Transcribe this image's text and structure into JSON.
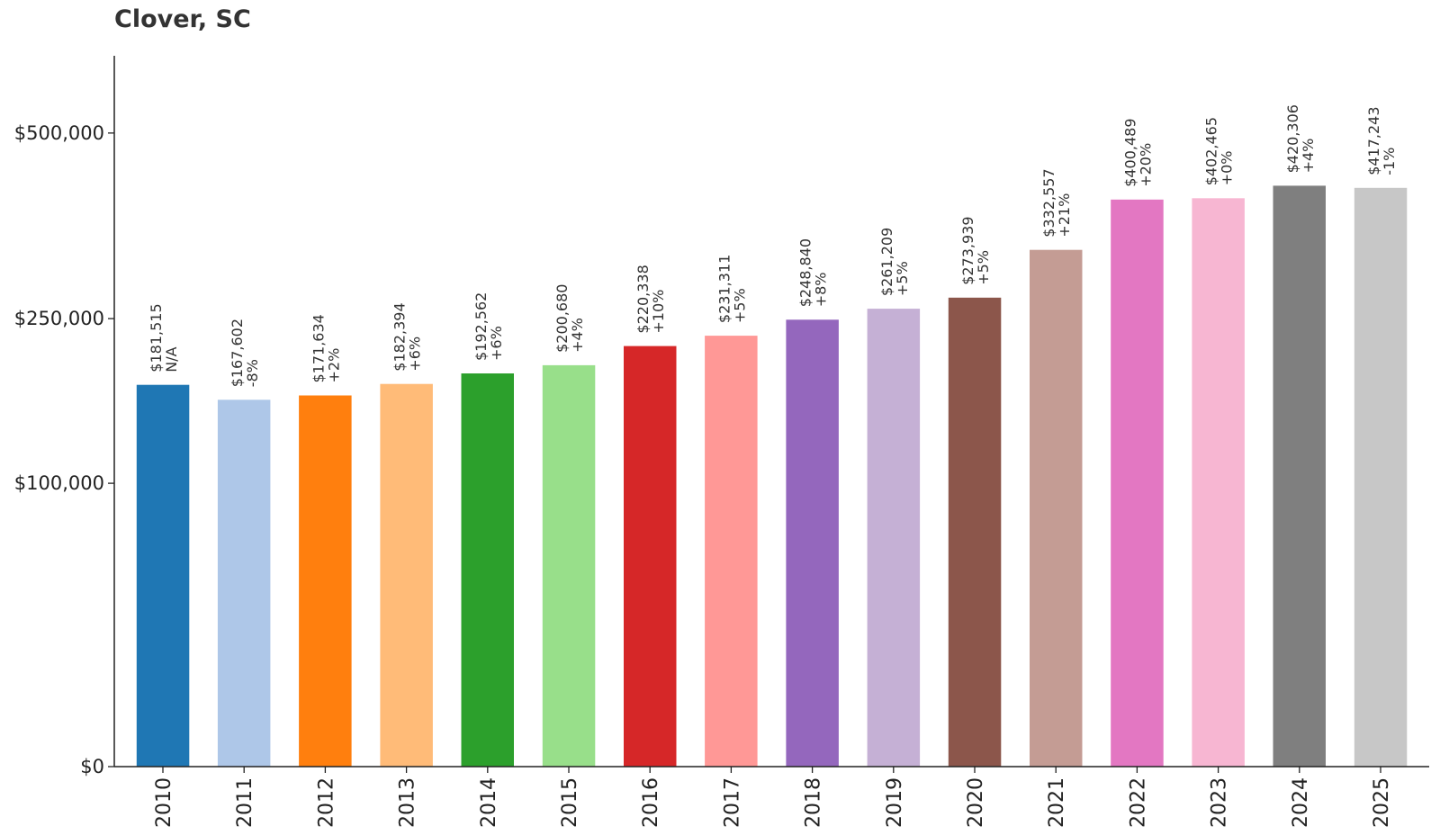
{
  "title": "Clover, SC",
  "chart_data": {
    "type": "bar",
    "title": "Clover, SC",
    "xlabel": "",
    "ylabel": "",
    "categories": [
      "2010",
      "2011",
      "2012",
      "2013",
      "2014",
      "2015",
      "2016",
      "2017",
      "2018",
      "2019",
      "2020",
      "2021",
      "2022",
      "2023",
      "2024",
      "2025"
    ],
    "values": [
      181515,
      167602,
      171634,
      182394,
      192562,
      200680,
      220338,
      231311,
      248840,
      261209,
      273939,
      332557,
      400489,
      402465,
      420306,
      417243
    ],
    "value_labels": [
      "$181,515",
      "$167,602",
      "$171,634",
      "$182,394",
      "$192,562",
      "$200,680",
      "$220,338",
      "$231,311",
      "$248,840",
      "$261,209",
      "$273,939",
      "$332,557",
      "$400,489",
      "$402,465",
      "$420,306",
      "$417,243"
    ],
    "change_labels": [
      "N/A",
      "-8%",
      "+2%",
      "+6%",
      "+6%",
      "+4%",
      "+10%",
      "+5%",
      "+8%",
      "+5%",
      "+5%",
      "+21%",
      "+20%",
      "+0%",
      "+4%",
      "-1%"
    ],
    "colors": [
      "#1f77b4",
      "#aec7e8",
      "#ff7f0e",
      "#ffbb78",
      "#2ca02c",
      "#98df8a",
      "#d62728",
      "#ff9896",
      "#9467bd",
      "#c5b0d5",
      "#8c564b",
      "#c49c94",
      "#e377c2",
      "#f7b6d2",
      "#7f7f7f",
      "#c7c7c7"
    ],
    "y_scale": "sqrt",
    "yticks": [
      0,
      100000,
      250000,
      500000
    ],
    "ytick_labels": [
      "$0",
      "$100,000",
      "$250,000",
      "$500,000"
    ],
    "ylim": [
      0,
      560000
    ],
    "grid": false,
    "legend": "none"
  }
}
